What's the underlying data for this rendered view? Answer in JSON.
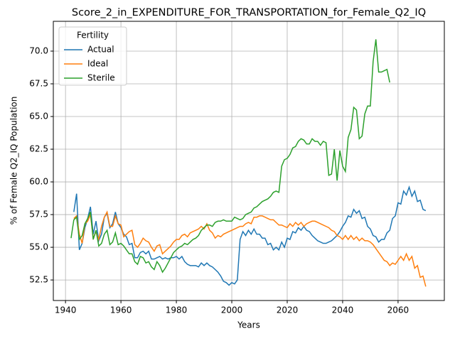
{
  "chart_data": {
    "type": "line",
    "title": "Score_2_in_EXPENDITURE_FOR_TRANSPORTATION_for_Female_Q2_IQ",
    "xlabel": "Years",
    "ylabel": "% of Female Q2_IQ Population",
    "xlim": [
      1935.6,
      2076.7
    ],
    "ylim": [
      50.93,
      72.28
    ],
    "xticks": [
      1940,
      1960,
      1980,
      2000,
      2020,
      2040,
      2060
    ],
    "yticks": [
      52.5,
      {
        "value": 55,
        "label": "55.0"
      },
      57.5,
      {
        "value": 60,
        "label": "60.0"
      },
      62.5,
      {
        "value": 65,
        "label": "65.0"
      },
      67.5,
      {
        "value": 70,
        "label": "70.0"
      }
    ],
    "grid": true,
    "legend_title": "Fertility",
    "legend_loc": "upper left",
    "series": [
      {
        "name": "Actual",
        "color": "#1f77b4",
        "x": [
          1943,
          1944,
          1945,
          1946,
          1947,
          1948,
          1949,
          1950,
          1951,
          1952,
          1953,
          1954,
          1955,
          1956,
          1957,
          1958,
          1959,
          1960,
          1961,
          1962,
          1963,
          1964,
          1965,
          1966,
          1967,
          1968,
          1969,
          1970,
          1971,
          1972,
          1973,
          1974,
          1975,
          1976,
          1977,
          1978,
          1979,
          1980,
          1981,
          1982,
          1983,
          1984,
          1985,
          1986,
          1987,
          1988,
          1989,
          1990,
          1991,
          1992,
          1993,
          1994,
          1995,
          1996,
          1997,
          1998,
          1999,
          2000,
          2001,
          2002,
          2003,
          2004,
          2005,
          2006,
          2007,
          2008,
          2009,
          2010,
          2011,
          2012,
          2013,
          2014,
          2015,
          2016,
          2017,
          2018,
          2019,
          2020,
          2021,
          2022,
          2023,
          2024,
          2025,
          2026,
          2027,
          2028,
          2029,
          2030,
          2031,
          2032,
          2033,
          2034,
          2035,
          2036,
          2037,
          2038,
          2039,
          2040,
          2041,
          2042,
          2043,
          2044,
          2045,
          2046,
          2047,
          2048,
          2049,
          2050,
          2051,
          2052,
          2053,
          2054,
          2055,
          2056,
          2057,
          2058,
          2059,
          2060,
          2061,
          2062,
          2063,
          2064,
          2065,
          2066,
          2067,
          2068,
          2069,
          2070
        ],
        "values": [
          57.7,
          59.1,
          54.8,
          55.3,
          56.5,
          57.2,
          58.1,
          56.0,
          57.0,
          55.5,
          56.0,
          57.3,
          57.6,
          56.5,
          56.8,
          57.7,
          56.8,
          56.5,
          56.0,
          55.8,
          55.2,
          55.3,
          54.2,
          54.2,
          54.6,
          54.7,
          54.5,
          54.7,
          54.1,
          54.1,
          54.2,
          54.3,
          54.1,
          54.2,
          54.1,
          54.2,
          54.2,
          54.3,
          54.1,
          54.3,
          53.9,
          53.7,
          53.6,
          53.6,
          53.6,
          53.5,
          53.8,
          53.6,
          53.8,
          53.6,
          53.5,
          53.3,
          53.1,
          52.8,
          52.4,
          52.3,
          52.1,
          52.3,
          52.2,
          52.5,
          55.6,
          56.2,
          55.9,
          56.3,
          56.0,
          56.4,
          56.0,
          56.0,
          55.7,
          55.7,
          55.2,
          55.3,
          54.8,
          55.0,
          54.8,
          55.4,
          55.0,
          55.7,
          55.6,
          56.2,
          56.1,
          56.5,
          56.3,
          56.6,
          56.3,
          56.2,
          55.9,
          55.7,
          55.5,
          55.4,
          55.3,
          55.3,
          55.4,
          55.5,
          55.7,
          55.9,
          56.2,
          56.6,
          56.9,
          57.4,
          57.3,
          57.9,
          57.6,
          57.8,
          57.2,
          57.3,
          56.6,
          56.4,
          55.9,
          55.8,
          55.4,
          55.6,
          55.6,
          56.1,
          56.3,
          57.2,
          57.4,
          58.4,
          58.3,
          59.3,
          59.0,
          59.6,
          58.9,
          59.3,
          58.5,
          58.6,
          57.9,
          57.8
        ]
      },
      {
        "name": "Ideal",
        "color": "#ff7f0e",
        "x": [
          1943,
          1944,
          1945,
          1946,
          1947,
          1948,
          1949,
          1950,
          1951,
          1952,
          1953,
          1954,
          1955,
          1956,
          1957,
          1958,
          1959,
          1960,
          1961,
          1962,
          1963,
          1964,
          1965,
          1966,
          1967,
          1968,
          1969,
          1970,
          1971,
          1972,
          1973,
          1974,
          1975,
          1976,
          1977,
          1978,
          1979,
          1980,
          1981,
          1982,
          1983,
          1984,
          1985,
          1986,
          1987,
          1988,
          1989,
          1990,
          1991,
          1992,
          1993,
          1994,
          1995,
          1996,
          1997,
          1998,
          1999,
          2000,
          2001,
          2002,
          2003,
          2004,
          2005,
          2006,
          2007,
          2008,
          2009,
          2010,
          2011,
          2012,
          2013,
          2014,
          2015,
          2016,
          2017,
          2018,
          2019,
          2020,
          2021,
          2022,
          2023,
          2024,
          2025,
          2026,
          2027,
          2028,
          2029,
          2030,
          2031,
          2032,
          2033,
          2034,
          2035,
          2036,
          2037,
          2038,
          2039,
          2040,
          2041,
          2042,
          2043,
          2044,
          2045,
          2046,
          2047,
          2048,
          2049,
          2050,
          2051,
          2052,
          2053,
          2054,
          2055,
          2056,
          2057,
          2058,
          2059,
          2060,
          2061,
          2062,
          2063,
          2064,
          2065,
          2066,
          2067,
          2068,
          2069,
          2070
        ],
        "values": [
          57.2,
          57.4,
          56.0,
          55.3,
          56.8,
          57.0,
          57.5,
          55.7,
          56.2,
          55.6,
          56.6,
          57.3,
          57.7,
          56.6,
          56.6,
          57.4,
          56.8,
          56.7,
          55.8,
          56.0,
          56.2,
          56.3,
          55.2,
          55.0,
          55.3,
          55.7,
          55.5,
          55.4,
          55.0,
          54.7,
          55.1,
          55.2,
          54.5,
          54.7,
          54.9,
          55.1,
          55.4,
          55.6,
          55.6,
          55.9,
          56.0,
          55.8,
          56.1,
          56.2,
          56.3,
          56.4,
          56.6,
          56.4,
          56.8,
          56.3,
          56.1,
          55.7,
          55.9,
          55.8,
          56.0,
          56.1,
          56.2,
          56.3,
          56.4,
          56.5,
          56.6,
          56.6,
          56.8,
          56.9,
          56.8,
          57.3,
          57.3,
          57.4,
          57.4,
          57.3,
          57.2,
          57.1,
          57.1,
          56.9,
          56.7,
          56.7,
          56.6,
          56.5,
          56.8,
          56.6,
          56.9,
          56.7,
          56.9,
          56.6,
          56.8,
          56.9,
          57.0,
          57.0,
          56.9,
          56.8,
          56.7,
          56.6,
          56.5,
          56.3,
          56.2,
          55.9,
          55.8,
          55.6,
          55.9,
          55.6,
          55.9,
          55.6,
          55.8,
          55.5,
          55.7,
          55.5,
          55.5,
          55.4,
          55.2,
          54.9,
          54.6,
          54.3,
          54.0,
          53.9,
          53.6,
          53.8,
          53.7,
          54.0,
          54.3,
          54.0,
          54.5,
          54.0,
          54.3,
          53.4,
          53.6,
          52.7,
          52.8,
          52.0
        ]
      },
      {
        "name": "Sterile",
        "color": "#2ca02c",
        "x": [
          1942,
          1943,
          1944,
          1945,
          1946,
          1947,
          1948,
          1949,
          1950,
          1951,
          1952,
          1953,
          1954,
          1955,
          1956,
          1957,
          1958,
          1959,
          1960,
          1961,
          1962,
          1963,
          1964,
          1965,
          1966,
          1967,
          1968,
          1969,
          1970,
          1971,
          1972,
          1973,
          1974,
          1975,
          1976,
          1977,
          1978,
          1979,
          1980,
          1981,
          1982,
          1983,
          1984,
          1985,
          1986,
          1987,
          1988,
          1989,
          1990,
          1991,
          1992,
          1993,
          1994,
          1995,
          1996,
          1997,
          1998,
          1999,
          2000,
          2001,
          2002,
          2003,
          2004,
          2005,
          2006,
          2007,
          2008,
          2009,
          2010,
          2011,
          2012,
          2013,
          2014,
          2015,
          2016,
          2017,
          2018,
          2019,
          2020,
          2021,
          2022,
          2023,
          2024,
          2025,
          2026,
          2027,
          2028,
          2029,
          2030,
          2031,
          2032,
          2033,
          2034,
          2035,
          2036,
          2037,
          2038,
          2039,
          2040,
          2041,
          2042,
          2043,
          2044,
          2045,
          2046,
          2047,
          2048,
          2049,
          2050,
          2051,
          2052,
          2053,
          2054,
          2055,
          2056,
          2057
        ],
        "values": [
          55.7,
          57.1,
          57.3,
          55.6,
          55.9,
          56.8,
          57.2,
          57.7,
          55.6,
          56.3,
          55.1,
          55.3,
          56.0,
          56.3,
          55.2,
          55.4,
          56.1,
          55.2,
          55.3,
          55.1,
          54.8,
          54.5,
          54.5,
          53.9,
          53.7,
          54.3,
          54.2,
          53.8,
          53.9,
          53.5,
          53.3,
          53.9,
          53.6,
          53.1,
          53.4,
          53.8,
          54.2,
          54.6,
          54.8,
          55.0,
          55.1,
          55.3,
          55.2,
          55.4,
          55.6,
          55.7,
          55.9,
          56.3,
          56.5,
          56.7,
          56.7,
          56.6,
          56.9,
          57.0,
          57.0,
          57.1,
          57.0,
          57.0,
          57.0,
          57.3,
          57.2,
          57.1,
          57.2,
          57.5,
          57.6,
          57.7,
          58.0,
          58.1,
          58.3,
          58.5,
          58.6,
          58.7,
          58.9,
          59.2,
          59.3,
          59.2,
          61.2,
          61.7,
          61.8,
          62.1,
          62.6,
          62.7,
          63.1,
          63.3,
          63.2,
          62.9,
          62.9,
          63.3,
          63.1,
          63.1,
          62.8,
          63.1,
          63.0,
          60.5,
          60.6,
          62.5,
          60.1,
          62.4,
          61.2,
          60.8,
          63.4,
          64.0,
          65.7,
          65.5,
          63.3,
          63.5,
          65.2,
          65.8,
          65.8,
          69.2,
          70.9,
          68.4,
          68.4,
          68.5,
          68.6,
          67.6
        ]
      }
    ]
  }
}
